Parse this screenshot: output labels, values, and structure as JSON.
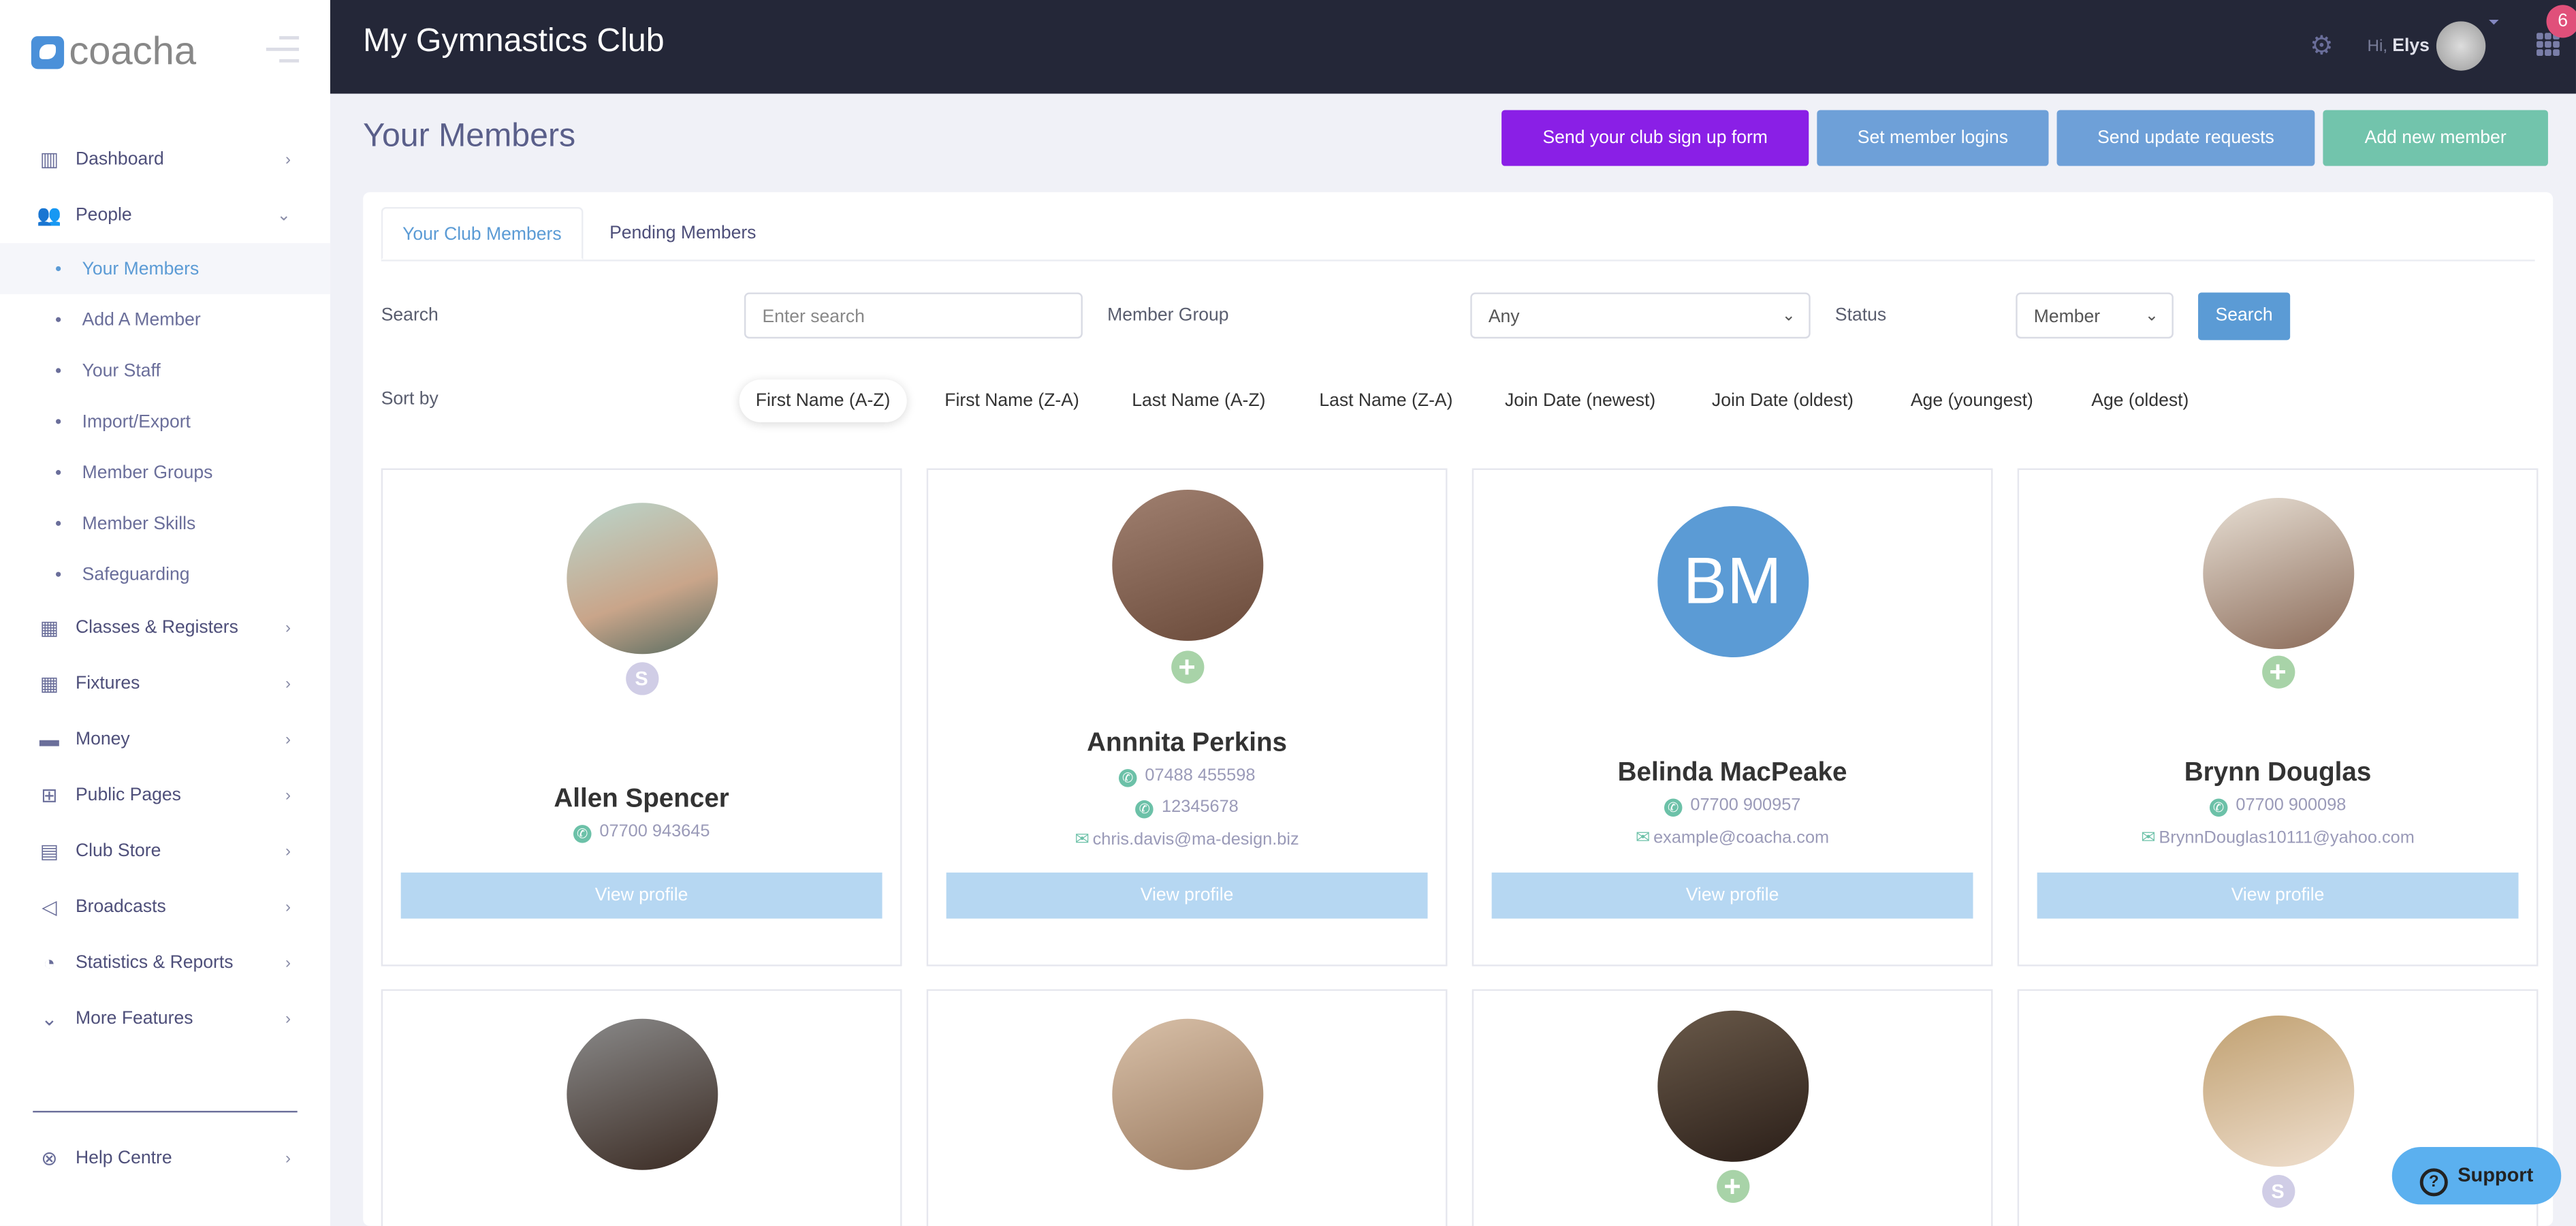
{
  "app": {
    "logo": "coacha",
    "club_name": "My Gymnastics Club"
  },
  "header": {
    "greeting": "Hi,",
    "user": "Elys",
    "notifications": "6"
  },
  "sidebar": {
    "items": [
      {
        "label": "Dashboard",
        "icon": "chart-icon"
      },
      {
        "label": "People",
        "icon": "people-icon"
      },
      {
        "label": "Classes & Registers",
        "icon": "calendar-icon"
      },
      {
        "label": "Fixtures",
        "icon": "calendar-icon"
      },
      {
        "label": "Money",
        "icon": "money-icon"
      },
      {
        "label": "Public Pages",
        "icon": "sitemap-icon"
      },
      {
        "label": "Club Store",
        "icon": "store-icon"
      },
      {
        "label": "Broadcasts",
        "icon": "megaphone-icon"
      },
      {
        "label": "Statistics & Reports",
        "icon": "pie-chart-icon"
      },
      {
        "label": "More Features",
        "icon": "chevron-circle-icon"
      }
    ],
    "people_sub": [
      "Your Members",
      "Add A Member",
      "Your Staff",
      "Import/Export",
      "Member Groups",
      "Member Skills",
      "Safeguarding"
    ],
    "help": "Help Centre"
  },
  "page": {
    "title": "Your Members",
    "buttons": {
      "signup": "Send your club sign up form",
      "logins": "Set member logins",
      "updates": "Send update requests",
      "add": "Add new member"
    },
    "colors": {
      "signup": "#8a1fe6",
      "logins": "#6ea0d8",
      "updates": "#6ea0d8",
      "add": "#72c4ac"
    }
  },
  "tabs": [
    "Your Club Members",
    "Pending Members"
  ],
  "filters": {
    "search_label": "Search",
    "search_placeholder": "Enter search",
    "group_label": "Member Group",
    "group_value": "Any",
    "status_label": "Status",
    "status_value": "Member",
    "search_button": "Search"
  },
  "sort": {
    "label": "Sort by",
    "options": [
      "First Name (A-Z)",
      "First Name (Z-A)",
      "Last Name (A-Z)",
      "Last Name (Z-A)",
      "Join Date (newest)",
      "Join Date (oldest)",
      "Age (youngest)",
      "Age (oldest)"
    ],
    "active": 0
  },
  "members": [
    {
      "name": "Allen Spencer",
      "phones": [
        "07700 943645"
      ],
      "email": "",
      "badge": "S",
      "initials": ""
    },
    {
      "name": "Annnita Perkins",
      "phones": [
        "07488 455598",
        "12345678"
      ],
      "email": "chris.davis@ma-design.biz",
      "badge": "+",
      "initials": ""
    },
    {
      "name": "Belinda MacPeake",
      "phones": [
        "07700 900957"
      ],
      "email": "example@coacha.com",
      "badge": "",
      "initials": "BM"
    },
    {
      "name": "Brynn Douglas",
      "phones": [
        "07700 900098"
      ],
      "email": "BrynnDouglas10111@yahoo.com",
      "badge": "+",
      "initials": ""
    }
  ],
  "row2_badges": [
    "",
    "",
    "+",
    "S"
  ],
  "view_profile": "View profile",
  "support": "Support"
}
